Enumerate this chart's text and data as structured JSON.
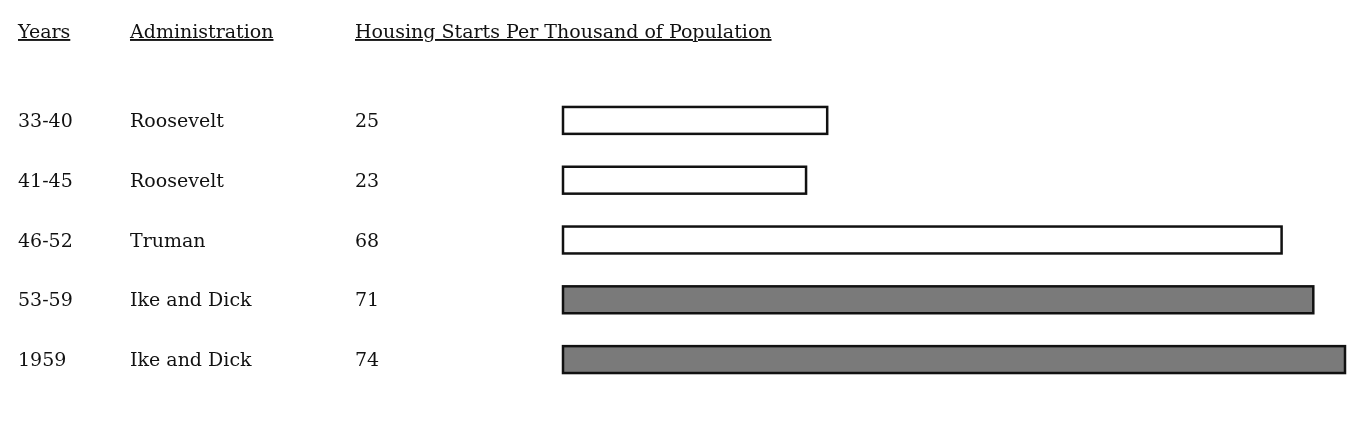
{
  "chart_data": {
    "type": "bar",
    "orientation": "horizontal",
    "ylabel": "Years",
    "xlabel": "Housing Starts Per Thousand of Population",
    "categories": [
      "33-40",
      "41-45",
      "46-52",
      "53-59",
      "1959"
    ],
    "values": [
      25,
      23,
      68,
      71,
      74
    ],
    "colors": [
      "#ffffff",
      "#ffffff",
      "#ffffff",
      "#7a7a7a",
      "#7a7a7a"
    ],
    "data_labels": true,
    "annotations": [
      "Administration",
      "Roosevelt",
      "Roosevelt",
      "Truman",
      "Ike and Dick",
      "Ike and Dick"
    ]
  }
}
